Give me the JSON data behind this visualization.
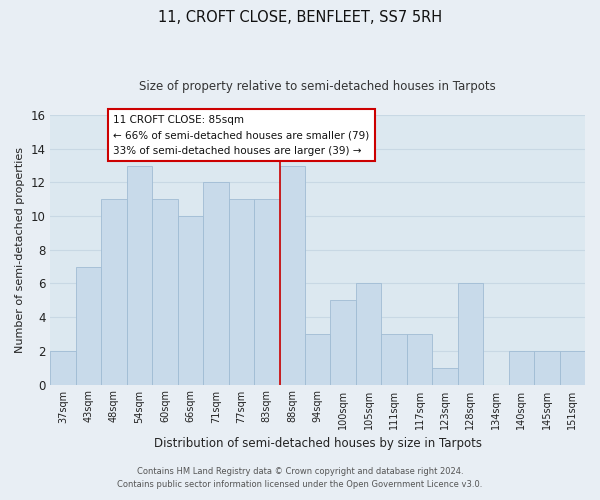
{
  "title": "11, CROFT CLOSE, BENFLEET, SS7 5RH",
  "subtitle": "Size of property relative to semi-detached houses in Tarpots",
  "xlabel": "Distribution of semi-detached houses by size in Tarpots",
  "ylabel": "Number of semi-detached properties",
  "bar_labels": [
    "37sqm",
    "43sqm",
    "48sqm",
    "54sqm",
    "60sqm",
    "66sqm",
    "71sqm",
    "77sqm",
    "83sqm",
    "88sqm",
    "94sqm",
    "100sqm",
    "105sqm",
    "111sqm",
    "117sqm",
    "123sqm",
    "128sqm",
    "134sqm",
    "140sqm",
    "145sqm",
    "151sqm"
  ],
  "bar_values": [
    2,
    7,
    11,
    13,
    11,
    10,
    12,
    11,
    11,
    13,
    3,
    5,
    6,
    3,
    3,
    1,
    6,
    0,
    2,
    2,
    2
  ],
  "bar_color": "#c8daea",
  "bar_edge_color": "#a0bcd4",
  "highlight_index": 8,
  "annotation_title": "11 CROFT CLOSE: 85sqm",
  "annotation_line1": "← 66% of semi-detached houses are smaller (79)",
  "annotation_line2": "33% of semi-detached houses are larger (39) →",
  "annotation_box_facecolor": "#ffffff",
  "annotation_box_edgecolor": "#cc0000",
  "ref_line_color": "#cc0000",
  "ylim": [
    0,
    16
  ],
  "yticks": [
    0,
    2,
    4,
    6,
    8,
    10,
    12,
    14,
    16
  ],
  "background_color": "#e8eef4",
  "plot_bg_color": "#dce8f0",
  "grid_color": "#c8d8e4",
  "footer1": "Contains HM Land Registry data © Crown copyright and database right 2024.",
  "footer2": "Contains public sector information licensed under the Open Government Licence v3.0."
}
